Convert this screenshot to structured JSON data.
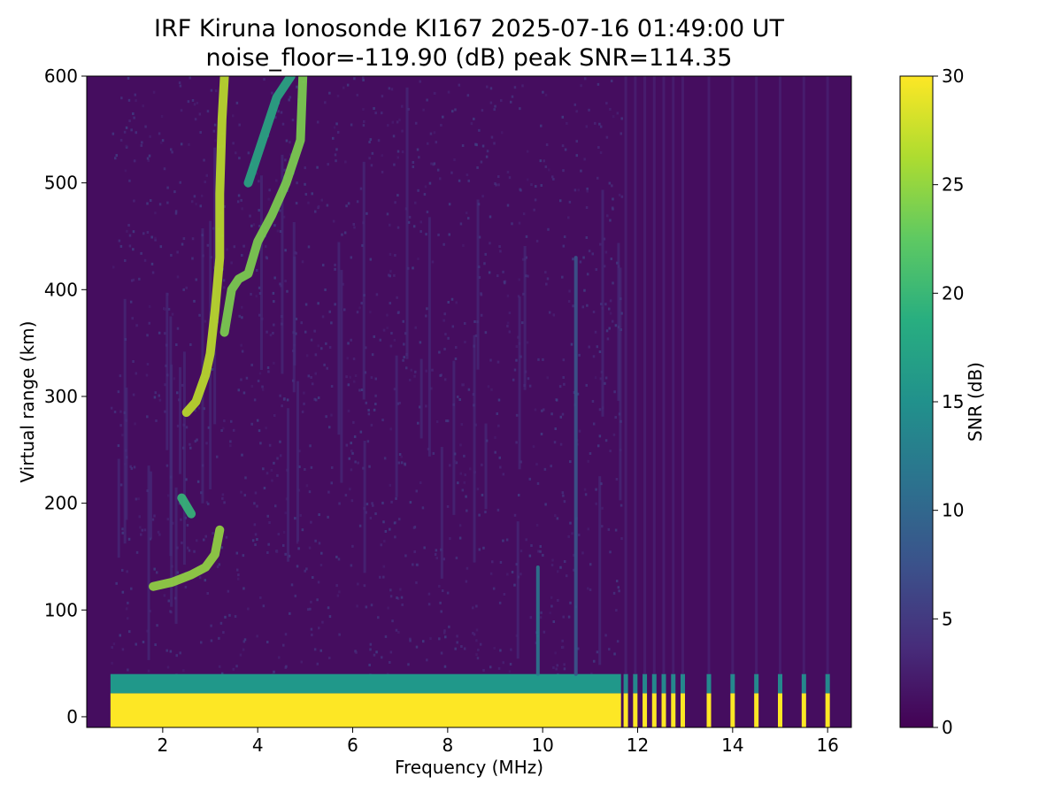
{
  "chart_data": {
    "type": "heatmap",
    "title": "IRF Kiruna Ionosonde KI167 2025-07-16 01:49:00  UT",
    "subtitle": "noise_floor=-119.90 (dB) peak SNR=114.35",
    "xlabel": "Frequency (MHz)",
    "ylabel": "Virtual range (km)",
    "xlim": [
      0.4,
      16.5
    ],
    "ylim": [
      -10,
      600
    ],
    "xticks": [
      2,
      4,
      6,
      8,
      10,
      12,
      14,
      16
    ],
    "yticks": [
      0,
      100,
      200,
      300,
      400,
      500,
      600
    ],
    "colorbar": {
      "label": "SNR (dB)",
      "range": [
        0,
        30
      ],
      "ticks": [
        0,
        5,
        10,
        15,
        20,
        25,
        30
      ],
      "colormap": "viridis"
    },
    "background_snr": 1,
    "freq_start_mhz": 0.9,
    "features": [
      {
        "name": "ground-clutter",
        "f_start": 0.9,
        "f_end": 11.65,
        "range_from": -10,
        "range_to": 22,
        "snr": 30
      },
      {
        "name": "ground-clutter-stripe",
        "f_start": 0.9,
        "f_end": 11.65,
        "range_from": 22,
        "range_to": 40,
        "snr": 16
      },
      {
        "name": "e-layer-trace",
        "points": [
          [
            1.8,
            122
          ],
          [
            2.2,
            126
          ],
          [
            2.6,
            133
          ],
          [
            2.9,
            140
          ],
          [
            3.1,
            152
          ],
          [
            3.2,
            175
          ]
        ],
        "snr": 25
      },
      {
        "name": "e-layer-echo",
        "points": [
          [
            2.4,
            205
          ],
          [
            2.6,
            190
          ]
        ],
        "snr": 20
      },
      {
        "name": "f-layer-o-trace",
        "points": [
          [
            2.5,
            285
          ],
          [
            2.7,
            295
          ],
          [
            2.9,
            320
          ],
          [
            3.0,
            340
          ],
          [
            3.1,
            380
          ],
          [
            3.2,
            430
          ],
          [
            3.2,
            490
          ],
          [
            3.25,
            560
          ],
          [
            3.3,
            600
          ]
        ],
        "snr": 27
      },
      {
        "name": "f-layer-x-trace",
        "points": [
          [
            3.3,
            360
          ],
          [
            3.45,
            400
          ],
          [
            3.6,
            410
          ],
          [
            3.8,
            415
          ],
          [
            4.0,
            445
          ],
          [
            4.3,
            470
          ],
          [
            4.6,
            500
          ],
          [
            4.9,
            540
          ],
          [
            4.95,
            600
          ]
        ],
        "snr": 24
      },
      {
        "name": "f-layer-echo-cloud",
        "points": [
          [
            3.8,
            500
          ],
          [
            4.1,
            540
          ],
          [
            4.4,
            580
          ],
          [
            4.7,
            600
          ]
        ],
        "snr": 18
      },
      {
        "name": "interference-10-0",
        "points": [
          [
            9.9,
            40
          ],
          [
            9.9,
            140
          ]
        ],
        "snr": 12
      },
      {
        "name": "interference-10-7",
        "points": [
          [
            10.7,
            40
          ],
          [
            10.7,
            430
          ]
        ],
        "snr": 8
      }
    ],
    "sparse_freqs": [
      11.75,
      11.95,
      12.15,
      12.35,
      12.55,
      12.75,
      12.95,
      13.5,
      14.0,
      14.5,
      15.0,
      15.5,
      16.0
    ]
  }
}
